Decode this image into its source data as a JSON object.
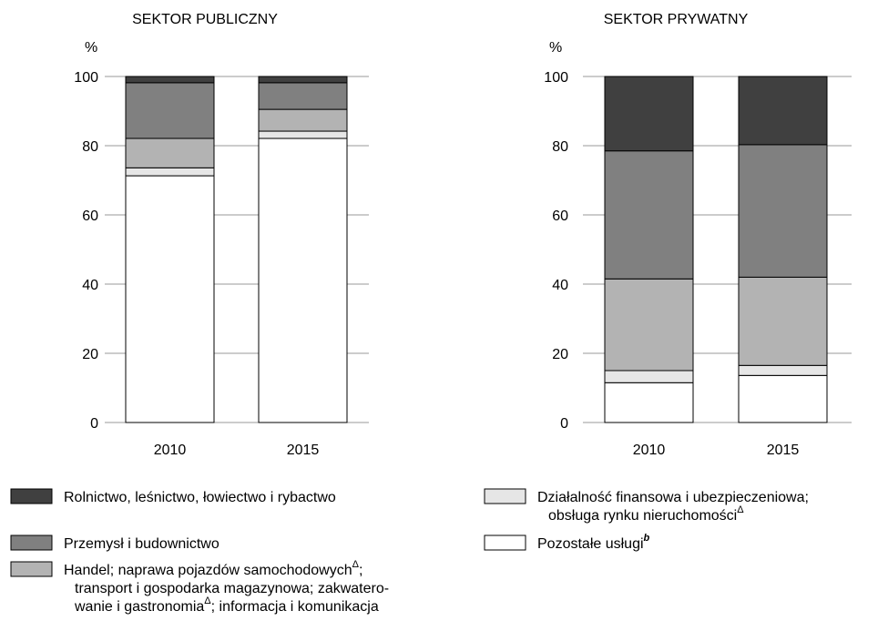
{
  "chart_data": [
    {
      "type": "stacked_bar",
      "title": "SEKTOR PUBLICZNY",
      "ylabel": "%",
      "categories": [
        "2010",
        "2015"
      ],
      "ylim": [
        0,
        100
      ],
      "yticks": [
        0,
        20,
        40,
        60,
        80,
        100
      ],
      "grid": true,
      "series": [
        {
          "values": [
            71.3,
            82.1
          ]
        },
        {
          "values": [
            2.3,
            2.1
          ]
        },
        {
          "values": [
            8.5,
            6.3
          ]
        },
        {
          "values": [
            16.1,
            7.7
          ]
        },
        {
          "values": [
            1.8,
            1.8
          ]
        }
      ]
    },
    {
      "type": "stacked_bar",
      "title": "SEKTOR PRYWATNY",
      "ylabel": "%",
      "categories": [
        "2010",
        "2015"
      ],
      "ylim": [
        0,
        100
      ],
      "yticks": [
        0,
        20,
        40,
        60,
        80,
        100
      ],
      "grid": true,
      "series": [
        {
          "values": [
            11.5,
            13.6
          ]
        },
        {
          "values": [
            3.5,
            2.9
          ]
        },
        {
          "values": [
            26.5,
            25.5
          ]
        },
        {
          "values": [
            37.0,
            38.3
          ]
        },
        {
          "values": [
            21.5,
            19.7
          ]
        }
      ]
    }
  ],
  "legend": [
    {
      "color": "#ffffff",
      "name": [
        [
          {
            "text": "Pozostałe usługi"
          },
          {
            "sup": "b"
          }
        ]
      ]
    },
    {
      "color": "#e6e6e6",
      "name": [
        [
          {
            "text": "Działalność finansowa i ubezpieczeniowa;"
          }
        ],
        [
          {
            "text": "obsługa rynku nieruchomości"
          },
          {
            "sup": "Δ"
          }
        ]
      ]
    },
    {
      "color": "#b3b3b3",
      "name": [
        [
          {
            "text": "Handel; naprawa pojazdów samochodowych"
          },
          {
            "sup": "Δ"
          },
          {
            "text": ";"
          }
        ],
        [
          {
            "text": "transport i gospodarka magazynowa; zakwatero-"
          }
        ],
        [
          {
            "text": "wanie i gastronomia"
          },
          {
            "sup": "Δ"
          },
          {
            "text": "; informacja i komunikacja"
          }
        ]
      ]
    },
    {
      "color": "#808080",
      "name": [
        [
          {
            "text": "Przemysł i budownictwo"
          }
        ]
      ]
    },
    {
      "color": "#404040",
      "name": [
        [
          {
            "text": "Rolnictwo, leśnictwo, łowiectwo i rybactwo"
          }
        ]
      ]
    }
  ]
}
